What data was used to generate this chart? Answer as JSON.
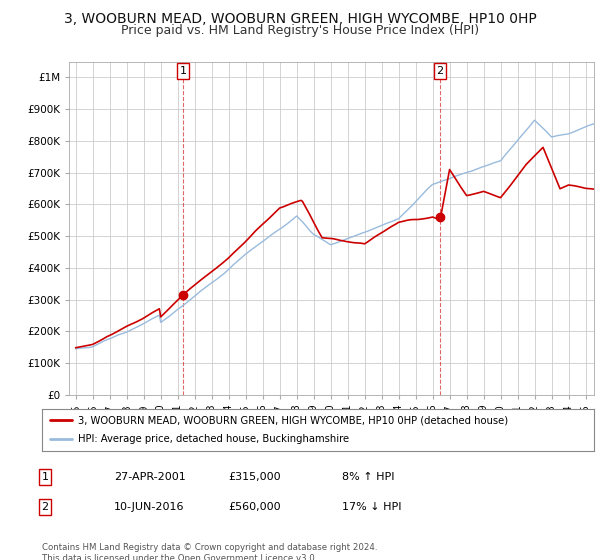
{
  "title": "3, WOOBURN MEAD, WOOBURN GREEN, HIGH WYCOMBE, HP10 0HP",
  "subtitle": "Price paid vs. HM Land Registry's House Price Index (HPI)",
  "xlim": [
    1994.6,
    2025.5
  ],
  "ylim": [
    0,
    1050000
  ],
  "yticks": [
    0,
    100000,
    200000,
    300000,
    400000,
    500000,
    600000,
    700000,
    800000,
    900000,
    1000000
  ],
  "ytick_labels": [
    "£0",
    "£100K",
    "£200K",
    "£300K",
    "£400K",
    "£500K",
    "£600K",
    "£700K",
    "£800K",
    "£900K",
    "£1M"
  ],
  "xticks": [
    1995,
    1996,
    1997,
    1998,
    1999,
    2000,
    2001,
    2002,
    2003,
    2004,
    2005,
    2006,
    2007,
    2008,
    2009,
    2010,
    2011,
    2012,
    2013,
    2014,
    2015,
    2016,
    2017,
    2018,
    2019,
    2020,
    2021,
    2022,
    2023,
    2024,
    2025
  ],
  "fig_bg_color": "#ffffff",
  "plot_bg_color": "#ffffff",
  "grid_color": "#cccccc",
  "red_line_color": "#cc0000",
  "blue_line_color": "#99bbdd",
  "marker1_x": 2001.32,
  "marker1_y": 315000,
  "marker2_x": 2016.44,
  "marker2_y": 560000,
  "vline1_x": 2001.32,
  "vline2_x": 2016.44,
  "legend_label_red": "3, WOOBURN MEAD, WOOBURN GREEN, HIGH WYCOMBE, HP10 0HP (detached house)",
  "legend_label_blue": "HPI: Average price, detached house, Buckinghamshire",
  "annotation1_label": "1",
  "annotation1_date": "27-APR-2001",
  "annotation1_price": "£315,000",
  "annotation1_hpi": "8% ↑ HPI",
  "annotation2_label": "2",
  "annotation2_date": "10-JUN-2016",
  "annotation2_price": "£560,000",
  "annotation2_hpi": "17% ↓ HPI",
  "footnote": "Contains HM Land Registry data © Crown copyright and database right 2024.\nThis data is licensed under the Open Government Licence v3.0.",
  "title_fontsize": 10,
  "subtitle_fontsize": 9
}
